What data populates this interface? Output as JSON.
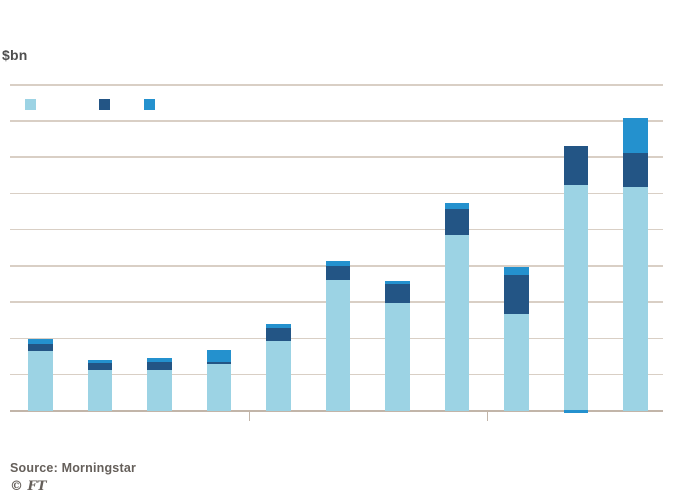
{
  "header": {
    "unit_label": "$bn"
  },
  "legend": {
    "items": [
      {
        "label": "",
        "color": "#9cd3e4",
        "name": "light-blue-series-swatch"
      },
      {
        "label": "",
        "color": "#235585",
        "name": "dark-navy-series-swatch"
      },
      {
        "label": "",
        "color": "#2491ce",
        "name": "bright-blue-series-swatch"
      }
    ]
  },
  "footer": {
    "source": "Source: Morningstar",
    "ft_mark": "© FT"
  },
  "colors": {
    "light_blue": "#9cd3e4",
    "dark_navy": "#235585",
    "bright_blue": "#2491ce",
    "gridline": "#d9cfc5",
    "axis": "#c2b5a9"
  },
  "chart_data": {
    "type": "bar",
    "stacked": true,
    "title": "",
    "ylabel": "$bn",
    "xlabel": "",
    "categories": [
      "",
      "",
      "",
      "",
      "",
      "",
      "",
      "",
      "",
      "",
      ""
    ],
    "series": [
      {
        "name": "light-blue",
        "color": "#9cd3e4",
        "values": [
          33.4,
          22.5,
          22.5,
          25.7,
          38.4,
          72.1,
          59.9,
          97.0,
          53.7,
          125.0,
          123.5
        ]
      },
      {
        "name": "dark-navy",
        "color": "#235585",
        "values": [
          3.5,
          4.1,
          4.8,
          1.1,
          7.7,
          7.7,
          10.3,
          14.8,
          21.2,
          21.3,
          19.0
        ]
      },
      {
        "name": "bright-blue",
        "color": "#2491ce",
        "values": [
          2.6,
          1.4,
          1.8,
          6.9,
          1.9,
          2.8,
          1.4,
          3.3,
          4.6,
          1.4,
          19.2
        ]
      }
    ],
    "ylim": [
      0,
      180
    ],
    "gridline_step": 20,
    "grid": true,
    "legend_position": "top-left",
    "x_axis_group_dividers_after_bar": [
      4,
      8
    ],
    "bright_blue_drawn_at_bottom_for_bar": 10,
    "notes": "No numeric axis labels, category labels, chart title or legend text are visible in the image; y-scale estimated from gridlines."
  }
}
